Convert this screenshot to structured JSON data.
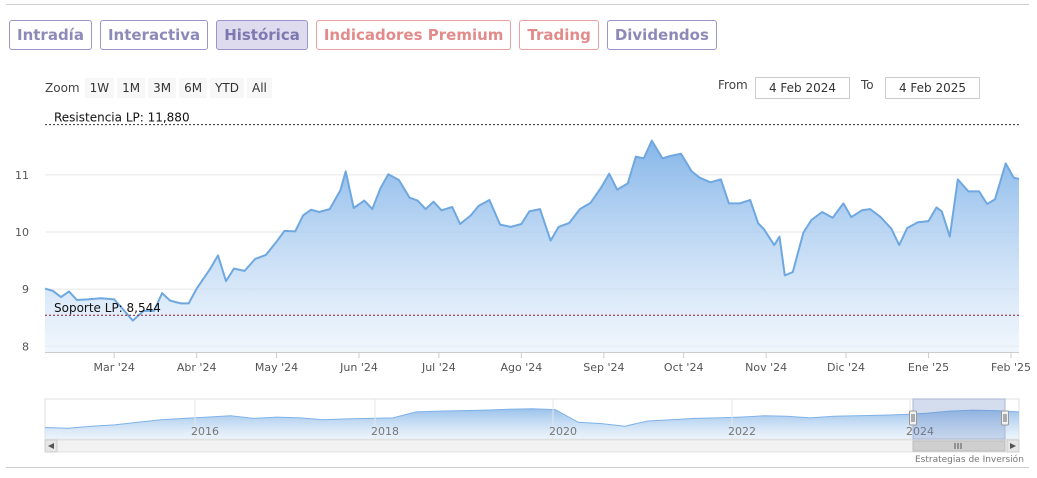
{
  "tabs": [
    {
      "label": "Intradía"
    },
    {
      "label": "Interactiva"
    },
    {
      "label": "Histórica"
    },
    {
      "label": "Indicadores Premium"
    },
    {
      "label": "Trading"
    },
    {
      "label": "Dividendos"
    }
  ],
  "zoom": {
    "label": "Zoom",
    "buttons": [
      "1W",
      "1M",
      "3M",
      "6M",
      "YTD",
      "All"
    ]
  },
  "range": {
    "from_label": "From",
    "from_value": "4 Feb 2024",
    "to_label": "To",
    "to_value": "4 Feb 2025"
  },
  "credit": "Estrategias de Inversión",
  "colors": {
    "line": "#6fa8e0",
    "fill_top": "#7fb2e8",
    "fill_bottom": "#e6f0fb",
    "accent": "#8e8ab8",
    "premium": "#e38b8b"
  },
  "chart_data": {
    "type": "area",
    "x_range": [
      "2024-02-04",
      "2025-02-04"
    ],
    "ylim": [
      7.9,
      12.1
    ],
    "y_ticks": [
      8,
      9,
      10,
      11
    ],
    "x_tick_labels": [
      {
        "date": "2024-03-01",
        "label": "Mar '24"
      },
      {
        "date": "2024-04-01",
        "label": "Abr '24"
      },
      {
        "date": "2024-05-01",
        "label": "May '24"
      },
      {
        "date": "2024-06-01",
        "label": "Jun '24"
      },
      {
        "date": "2024-07-01",
        "label": "Jul '24"
      },
      {
        "date": "2024-08-01",
        "label": "Ago '24"
      },
      {
        "date": "2024-09-01",
        "label": "Sep '24"
      },
      {
        "date": "2024-10-01",
        "label": "Oct '24"
      },
      {
        "date": "2024-11-01",
        "label": "Nov '24"
      },
      {
        "date": "2024-12-01",
        "label": "Dic '24"
      },
      {
        "date": "2025-01-01",
        "label": "Ene '25"
      },
      {
        "date": "2025-02-01",
        "label": "Feb '25"
      }
    ],
    "reference_lines": [
      {
        "label": "Resistencia LP: 11,880",
        "value": 11.88,
        "color": "#333333"
      },
      {
        "label": "Soporte LP: 8,544",
        "value": 8.544,
        "color": "#8b1a2a"
      }
    ],
    "series": [
      {
        "points": [
          [
            "2024-02-04",
            9.01
          ],
          [
            "2024-02-07",
            8.97
          ],
          [
            "2024-02-10",
            8.86
          ],
          [
            "2024-02-13",
            8.96
          ],
          [
            "2024-02-16",
            8.81
          ],
          [
            "2024-02-20",
            8.82
          ],
          [
            "2024-02-25",
            8.84
          ],
          [
            "2024-03-01",
            8.82
          ],
          [
            "2024-03-05",
            8.61
          ],
          [
            "2024-03-08",
            8.45
          ],
          [
            "2024-03-12",
            8.62
          ],
          [
            "2024-03-16",
            8.62
          ],
          [
            "2024-03-19",
            8.93
          ],
          [
            "2024-03-22",
            8.8
          ],
          [
            "2024-03-26",
            8.75
          ],
          [
            "2024-03-29",
            8.75
          ],
          [
            "2024-04-01",
            9.01
          ],
          [
            "2024-04-06",
            9.35
          ],
          [
            "2024-04-09",
            9.59
          ],
          [
            "2024-04-12",
            9.14
          ],
          [
            "2024-04-15",
            9.36
          ],
          [
            "2024-04-19",
            9.32
          ],
          [
            "2024-04-23",
            9.53
          ],
          [
            "2024-04-27",
            9.6
          ],
          [
            "2024-05-01",
            9.83
          ],
          [
            "2024-05-04",
            10.02
          ],
          [
            "2024-05-08",
            10.01
          ],
          [
            "2024-05-11",
            10.29
          ],
          [
            "2024-05-14",
            10.39
          ],
          [
            "2024-05-17",
            10.35
          ],
          [
            "2024-05-21",
            10.4
          ],
          [
            "2024-05-25",
            10.73
          ],
          [
            "2024-05-27",
            11.06
          ],
          [
            "2024-05-30",
            10.42
          ],
          [
            "2024-06-03",
            10.55
          ],
          [
            "2024-06-06",
            10.4
          ],
          [
            "2024-06-09",
            10.76
          ],
          [
            "2024-06-12",
            11.01
          ],
          [
            "2024-06-16",
            10.91
          ],
          [
            "2024-06-20",
            10.6
          ],
          [
            "2024-06-23",
            10.55
          ],
          [
            "2024-06-26",
            10.4
          ],
          [
            "2024-06-29",
            10.53
          ],
          [
            "2024-07-02",
            10.38
          ],
          [
            "2024-07-06",
            10.44
          ],
          [
            "2024-07-09",
            10.14
          ],
          [
            "2024-07-13",
            10.29
          ],
          [
            "2024-07-16",
            10.46
          ],
          [
            "2024-07-20",
            10.56
          ],
          [
            "2024-07-24",
            10.13
          ],
          [
            "2024-07-28",
            10.09
          ],
          [
            "2024-08-01",
            10.14
          ],
          [
            "2024-08-04",
            10.36
          ],
          [
            "2024-08-08",
            10.4
          ],
          [
            "2024-08-12",
            9.85
          ],
          [
            "2024-08-15",
            10.09
          ],
          [
            "2024-08-19",
            10.16
          ],
          [
            "2024-08-23",
            10.4
          ],
          [
            "2024-08-27",
            10.51
          ],
          [
            "2024-08-31",
            10.78
          ],
          [
            "2024-09-03",
            11.02
          ],
          [
            "2024-09-06",
            10.74
          ],
          [
            "2024-09-10",
            10.85
          ],
          [
            "2024-09-13",
            11.32
          ],
          [
            "2024-09-16",
            11.29
          ],
          [
            "2024-09-19",
            11.6
          ],
          [
            "2024-09-23",
            11.29
          ],
          [
            "2024-09-26",
            11.33
          ],
          [
            "2024-09-30",
            11.37
          ],
          [
            "2024-10-04",
            11.06
          ],
          [
            "2024-10-07",
            10.95
          ],
          [
            "2024-10-11",
            10.87
          ],
          [
            "2024-10-15",
            10.92
          ],
          [
            "2024-10-18",
            10.5
          ],
          [
            "2024-10-22",
            10.5
          ],
          [
            "2024-10-26",
            10.56
          ],
          [
            "2024-10-29",
            10.15
          ],
          [
            "2024-10-31",
            10.06
          ],
          [
            "2024-11-04",
            9.77
          ],
          [
            "2024-11-06",
            9.92
          ],
          [
            "2024-11-08",
            9.24
          ],
          [
            "2024-11-11",
            9.3
          ],
          [
            "2024-11-15",
            9.99
          ],
          [
            "2024-11-18",
            10.21
          ],
          [
            "2024-11-22",
            10.35
          ],
          [
            "2024-11-26",
            10.25
          ],
          [
            "2024-11-30",
            10.5
          ],
          [
            "2024-12-03",
            10.26
          ],
          [
            "2024-12-07",
            10.38
          ],
          [
            "2024-12-10",
            10.4
          ],
          [
            "2024-12-14",
            10.26
          ],
          [
            "2024-12-18",
            10.06
          ],
          [
            "2024-12-21",
            9.77
          ],
          [
            "2024-12-24",
            10.07
          ],
          [
            "2024-12-28",
            10.17
          ],
          [
            "2025-01-01",
            10.19
          ],
          [
            "2025-01-04",
            10.43
          ],
          [
            "2025-01-06",
            10.36
          ],
          [
            "2025-01-09",
            9.92
          ],
          [
            "2025-01-12",
            10.92
          ],
          [
            "2025-01-16",
            10.71
          ],
          [
            "2025-01-20",
            10.71
          ],
          [
            "2025-01-23",
            10.49
          ],
          [
            "2025-01-26",
            10.57
          ],
          [
            "2025-01-30",
            11.2
          ],
          [
            "2025-02-02",
            10.95
          ],
          [
            "2025-02-04",
            10.93
          ]
        ]
      }
    ],
    "navigator": {
      "tick_labels": [
        "2016",
        "2018",
        "2020",
        "2022",
        "2024"
      ],
      "profile": [
        0.25,
        0.22,
        0.3,
        0.35,
        0.45,
        0.55,
        0.6,
        0.65,
        0.7,
        0.6,
        0.65,
        0.62,
        0.55,
        0.58,
        0.6,
        0.62,
        0.85,
        0.88,
        0.9,
        0.92,
        0.95,
        0.97,
        0.94,
        0.45,
        0.4,
        0.3,
        0.5,
        0.55,
        0.6,
        0.62,
        0.65,
        0.7,
        0.68,
        0.62,
        0.68,
        0.7,
        0.72,
        0.75,
        0.8,
        0.88,
        0.92,
        0.9,
        0.85
      ]
    }
  }
}
